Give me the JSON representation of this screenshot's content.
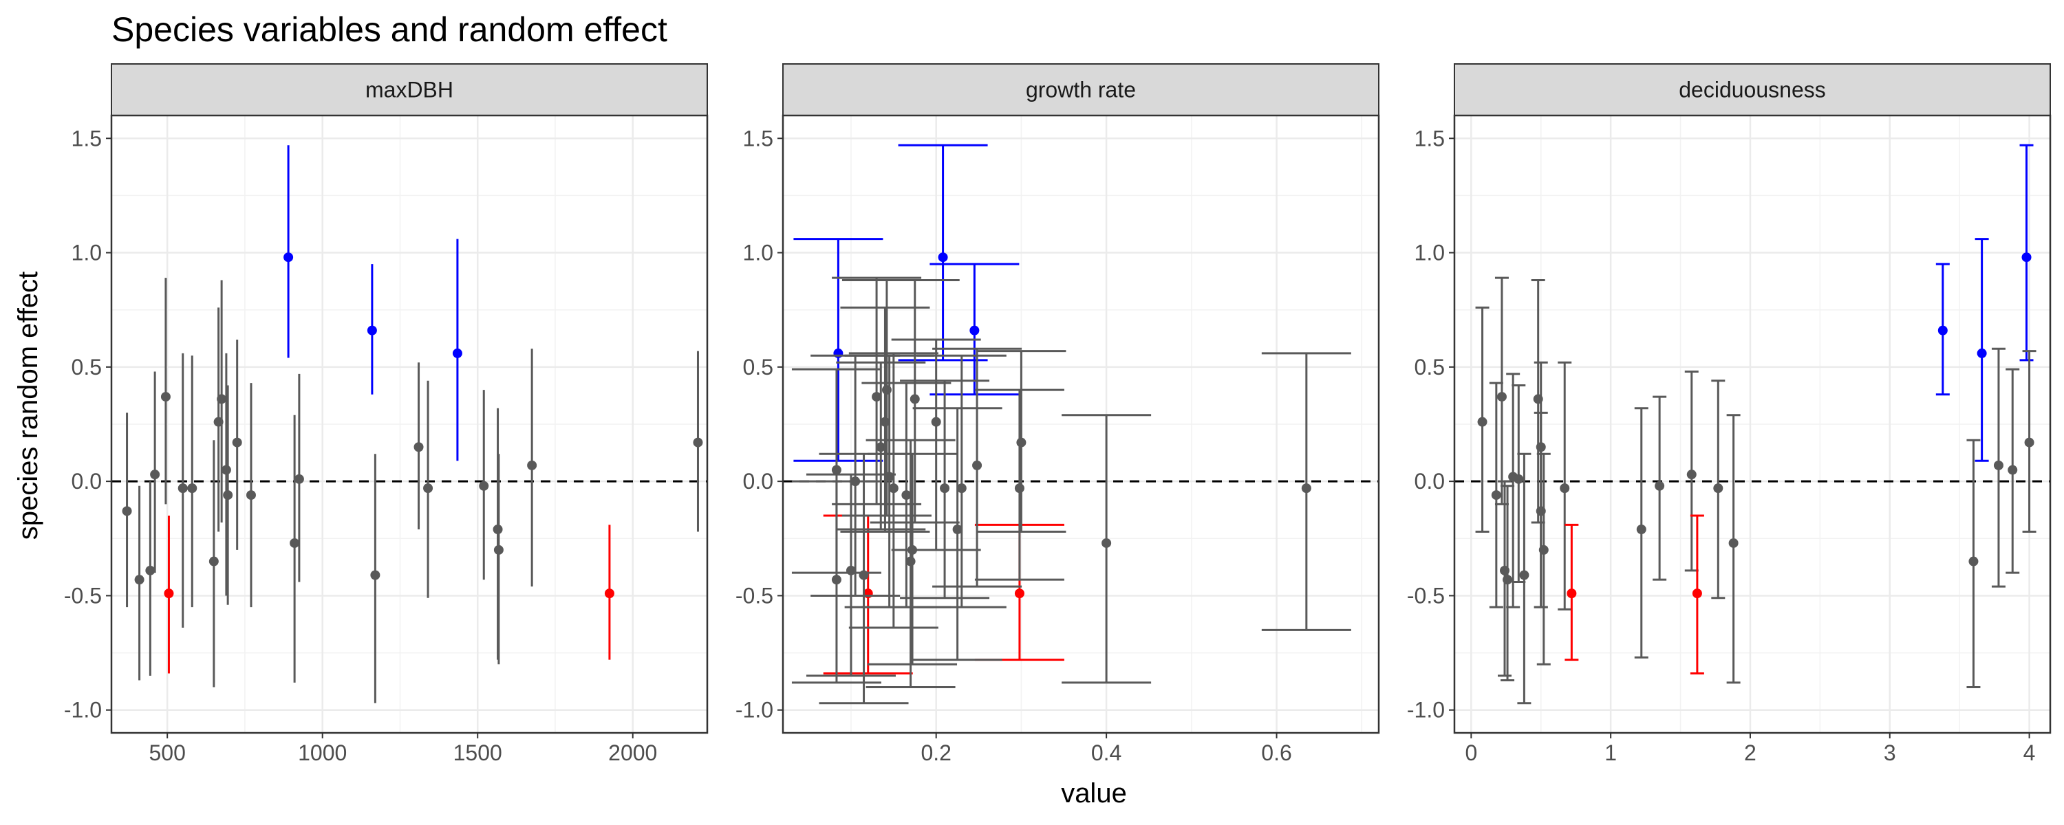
{
  "chart_data": {
    "type": "scatter",
    "title": "Species variables and random effect",
    "xlabel": "value",
    "ylabel": "species random effect",
    "ylim": [
      -1.1,
      1.6
    ],
    "yticks": [
      -1.0,
      -0.5,
      0.0,
      0.5,
      1.0,
      1.5
    ],
    "ytick_labels": [
      "-1.0",
      "-0.5",
      "0.0",
      "0.5",
      "1.0",
      "1.5"
    ],
    "reference_line": {
      "y": 0,
      "style": "dashed"
    },
    "grid": true,
    "colors": {
      "default": "#595959",
      "high": "#0000ff",
      "low": "#ff0000"
    },
    "facets": [
      {
        "name": "maxDBH",
        "xlim": [
          320,
          2240
        ],
        "xticks": [
          500,
          1000,
          1500,
          2000
        ],
        "xtick_labels": [
          "500",
          "1000",
          "1500",
          "2000"
        ],
        "errorbar": "vertical",
        "points": [
          {
            "x": 370,
            "y": -0.13,
            "lo": -0.55,
            "hi": 0.3,
            "group": "default"
          },
          {
            "x": 410,
            "y": -0.43,
            "lo": -0.87,
            "hi": -0.02,
            "group": "default"
          },
          {
            "x": 445,
            "y": -0.39,
            "lo": -0.85,
            "hi": 0.0,
            "group": "default"
          },
          {
            "x": 460,
            "y": 0.03,
            "lo": -0.4,
            "hi": 0.48,
            "group": "default"
          },
          {
            "x": 495,
            "y": 0.37,
            "lo": -0.1,
            "hi": 0.89,
            "group": "default"
          },
          {
            "x": 505,
            "y": -0.49,
            "lo": -0.84,
            "hi": -0.15,
            "group": "low"
          },
          {
            "x": 550,
            "y": -0.03,
            "lo": -0.64,
            "hi": 0.56,
            "group": "default"
          },
          {
            "x": 580,
            "y": -0.03,
            "lo": -0.55,
            "hi": 0.55,
            "group": "default"
          },
          {
            "x": 650,
            "y": -0.35,
            "lo": -0.9,
            "hi": 0.18,
            "group": "default"
          },
          {
            "x": 665,
            "y": 0.26,
            "lo": -0.22,
            "hi": 0.76,
            "group": "default"
          },
          {
            "x": 675,
            "y": 0.36,
            "lo": -0.18,
            "hi": 0.88,
            "group": "default"
          },
          {
            "x": 690,
            "y": 0.05,
            "lo": -0.5,
            "hi": 0.56,
            "group": "default"
          },
          {
            "x": 695,
            "y": -0.06,
            "lo": -0.54,
            "hi": 0.42,
            "group": "default"
          },
          {
            "x": 725,
            "y": 0.17,
            "lo": -0.3,
            "hi": 0.62,
            "group": "default"
          },
          {
            "x": 770,
            "y": -0.06,
            "lo": -0.55,
            "hi": 0.43,
            "group": "default"
          },
          {
            "x": 890,
            "y": 0.98,
            "lo": 0.54,
            "hi": 1.47,
            "group": "high"
          },
          {
            "x": 910,
            "y": -0.27,
            "lo": -0.88,
            "hi": 0.29,
            "group": "default"
          },
          {
            "x": 925,
            "y": 0.01,
            "lo": -0.44,
            "hi": 0.47,
            "group": "default"
          },
          {
            "x": 1160,
            "y": 0.66,
            "lo": 0.38,
            "hi": 0.95,
            "group": "high"
          },
          {
            "x": 1170,
            "y": -0.41,
            "lo": -0.97,
            "hi": 0.12,
            "group": "default"
          },
          {
            "x": 1310,
            "y": 0.15,
            "lo": -0.21,
            "hi": 0.52,
            "group": "default"
          },
          {
            "x": 1340,
            "y": -0.03,
            "lo": -0.51,
            "hi": 0.44,
            "group": "default"
          },
          {
            "x": 1435,
            "y": 0.56,
            "lo": 0.09,
            "hi": 1.06,
            "group": "high"
          },
          {
            "x": 1520,
            "y": -0.02,
            "lo": -0.43,
            "hi": 0.4,
            "group": "default"
          },
          {
            "x": 1565,
            "y": -0.21,
            "lo": -0.78,
            "hi": 0.32,
            "group": "default"
          },
          {
            "x": 1568,
            "y": -0.3,
            "lo": -0.8,
            "hi": 0.12,
            "group": "default"
          },
          {
            "x": 1675,
            "y": 0.07,
            "lo": -0.46,
            "hi": 0.58,
            "group": "default"
          },
          {
            "x": 1925,
            "y": -0.49,
            "lo": -0.78,
            "hi": -0.19,
            "group": "low"
          },
          {
            "x": 2210,
            "y": 0.17,
            "lo": -0.22,
            "hi": 0.57,
            "group": "default"
          }
        ]
      },
      {
        "name": "growth rate",
        "xlim": [
          0.02,
          0.72
        ],
        "xticks": [
          0.2,
          0.4,
          0.6
        ],
        "xtick_labels": [
          "0.2",
          "0.4",
          "0.6"
        ],
        "errorbar": "crossbar",
        "points": [
          {
            "x": 0.085,
            "y": 0.56,
            "lo": 0.09,
            "hi": 1.06,
            "group": "high"
          },
          {
            "x": 0.208,
            "y": 0.98,
            "lo": 0.53,
            "hi": 1.47,
            "group": "high"
          },
          {
            "x": 0.245,
            "y": 0.66,
            "lo": 0.38,
            "hi": 0.95,
            "group": "high"
          },
          {
            "x": 0.12,
            "y": -0.49,
            "lo": -0.84,
            "hi": -0.15,
            "group": "low"
          },
          {
            "x": 0.298,
            "y": -0.49,
            "lo": -0.78,
            "hi": -0.19,
            "group": "low"
          },
          {
            "x": 0.083,
            "y": 0.05,
            "lo": -0.4,
            "hi": 0.49,
            "group": "default"
          },
          {
            "x": 0.083,
            "y": -0.43,
            "lo": -0.88,
            "hi": 0.0,
            "group": "default"
          },
          {
            "x": 0.1,
            "y": -0.39,
            "lo": -0.85,
            "hi": 0.03,
            "group": "default"
          },
          {
            "x": 0.105,
            "y": 0.0,
            "lo": -0.5,
            "hi": 0.55,
            "group": "default"
          },
          {
            "x": 0.115,
            "y": -0.41,
            "lo": -0.97,
            "hi": 0.12,
            "group": "default"
          },
          {
            "x": 0.13,
            "y": 0.37,
            "lo": -0.1,
            "hi": 0.89,
            "group": "default"
          },
          {
            "x": 0.135,
            "y": 0.15,
            "lo": -0.21,
            "hi": 0.52,
            "group": "default"
          },
          {
            "x": 0.14,
            "y": 0.26,
            "lo": -0.22,
            "hi": 0.76,
            "group": "default"
          },
          {
            "x": 0.142,
            "y": 0.4,
            "lo": -0.15,
            "hi": 0.88,
            "group": "default"
          },
          {
            "x": 0.145,
            "y": 0.02,
            "lo": -0.55,
            "hi": 0.55,
            "group": "default"
          },
          {
            "x": 0.15,
            "y": -0.03,
            "lo": -0.64,
            "hi": 0.56,
            "group": "default"
          },
          {
            "x": 0.165,
            "y": -0.06,
            "lo": -0.55,
            "hi": 0.43,
            "group": "default"
          },
          {
            "x": 0.17,
            "y": -0.35,
            "lo": -0.9,
            "hi": 0.18,
            "group": "default"
          },
          {
            "x": 0.172,
            "y": -0.3,
            "lo": -0.8,
            "hi": 0.12,
            "group": "default"
          },
          {
            "x": 0.175,
            "y": 0.36,
            "lo": -0.18,
            "hi": 0.88,
            "group": "default"
          },
          {
            "x": 0.2,
            "y": 0.26,
            "lo": -0.3,
            "hi": 0.62,
            "group": "default"
          },
          {
            "x": 0.21,
            "y": -0.03,
            "lo": -0.51,
            "hi": 0.44,
            "group": "default"
          },
          {
            "x": 0.225,
            "y": -0.21,
            "lo": -0.78,
            "hi": 0.32,
            "group": "default"
          },
          {
            "x": 0.23,
            "y": -0.03,
            "lo": -0.55,
            "hi": 0.55,
            "group": "default"
          },
          {
            "x": 0.248,
            "y": 0.07,
            "lo": -0.46,
            "hi": 0.58,
            "group": "default"
          },
          {
            "x": 0.298,
            "y": -0.03,
            "lo": -0.43,
            "hi": 0.4,
            "group": "default"
          },
          {
            "x": 0.3,
            "y": 0.17,
            "lo": -0.22,
            "hi": 0.57,
            "group": "default"
          },
          {
            "x": 0.4,
            "y": -0.27,
            "lo": -0.88,
            "hi": 0.29,
            "group": "default"
          },
          {
            "x": 0.635,
            "y": -0.03,
            "lo": -0.65,
            "hi": 0.56,
            "group": "default"
          }
        ]
      },
      {
        "name": "deciduousness",
        "xlim": [
          -0.12,
          4.15
        ],
        "xticks": [
          0,
          1,
          2,
          3,
          4
        ],
        "xtick_labels": [
          "0",
          "1",
          "2",
          "3",
          "4"
        ],
        "errorbar": "errorbar",
        "points": [
          {
            "x": 0.08,
            "y": 0.26,
            "lo": -0.22,
            "hi": 0.76,
            "group": "default"
          },
          {
            "x": 0.18,
            "y": -0.06,
            "lo": -0.55,
            "hi": 0.43,
            "group": "default"
          },
          {
            "x": 0.22,
            "y": 0.37,
            "lo": -0.1,
            "hi": 0.89,
            "group": "default"
          },
          {
            "x": 0.24,
            "y": -0.39,
            "lo": -0.85,
            "hi": 0.0,
            "group": "default"
          },
          {
            "x": 0.26,
            "y": -0.43,
            "lo": -0.87,
            "hi": -0.02,
            "group": "default"
          },
          {
            "x": 0.3,
            "y": 0.02,
            "lo": -0.55,
            "hi": 0.47,
            "group": "default"
          },
          {
            "x": 0.34,
            "y": 0.01,
            "lo": -0.44,
            "hi": 0.42,
            "group": "default"
          },
          {
            "x": 0.38,
            "y": -0.41,
            "lo": -0.97,
            "hi": 0.12,
            "group": "default"
          },
          {
            "x": 0.48,
            "y": 0.36,
            "lo": -0.18,
            "hi": 0.88,
            "group": "default"
          },
          {
            "x": 0.5,
            "y": 0.15,
            "lo": -0.55,
            "hi": 0.52,
            "group": "default"
          },
          {
            "x": 0.5,
            "y": -0.13,
            "lo": -0.55,
            "hi": 0.3,
            "group": "default"
          },
          {
            "x": 0.52,
            "y": -0.3,
            "lo": -0.8,
            "hi": 0.12,
            "group": "default"
          },
          {
            "x": 0.67,
            "y": -0.03,
            "lo": -0.56,
            "hi": 0.52,
            "group": "default"
          },
          {
            "x": 0.72,
            "y": -0.49,
            "lo": -0.78,
            "hi": -0.19,
            "group": "low"
          },
          {
            "x": 1.22,
            "y": -0.21,
            "lo": -0.77,
            "hi": 0.32,
            "group": "default"
          },
          {
            "x": 1.35,
            "y": -0.02,
            "lo": -0.43,
            "hi": 0.37,
            "group": "default"
          },
          {
            "x": 1.58,
            "y": 0.03,
            "lo": -0.39,
            "hi": 0.48,
            "group": "default"
          },
          {
            "x": 1.62,
            "y": -0.49,
            "lo": -0.84,
            "hi": -0.15,
            "group": "low"
          },
          {
            "x": 1.77,
            "y": -0.03,
            "lo": -0.51,
            "hi": 0.44,
            "group": "default"
          },
          {
            "x": 1.88,
            "y": -0.27,
            "lo": -0.88,
            "hi": 0.29,
            "group": "default"
          },
          {
            "x": 3.38,
            "y": 0.66,
            "lo": 0.38,
            "hi": 0.95,
            "group": "high"
          },
          {
            "x": 3.6,
            "y": -0.35,
            "lo": -0.9,
            "hi": 0.18,
            "group": "default"
          },
          {
            "x": 3.66,
            "y": 0.56,
            "lo": 0.09,
            "hi": 1.06,
            "group": "high"
          },
          {
            "x": 3.78,
            "y": 0.07,
            "lo": -0.46,
            "hi": 0.58,
            "group": "default"
          },
          {
            "x": 3.88,
            "y": 0.05,
            "lo": -0.4,
            "hi": 0.49,
            "group": "default"
          },
          {
            "x": 3.98,
            "y": 0.98,
            "lo": 0.53,
            "hi": 1.47,
            "group": "high"
          },
          {
            "x": 4.0,
            "y": 0.17,
            "lo": -0.22,
            "hi": 0.57,
            "group": "default"
          }
        ]
      }
    ]
  }
}
